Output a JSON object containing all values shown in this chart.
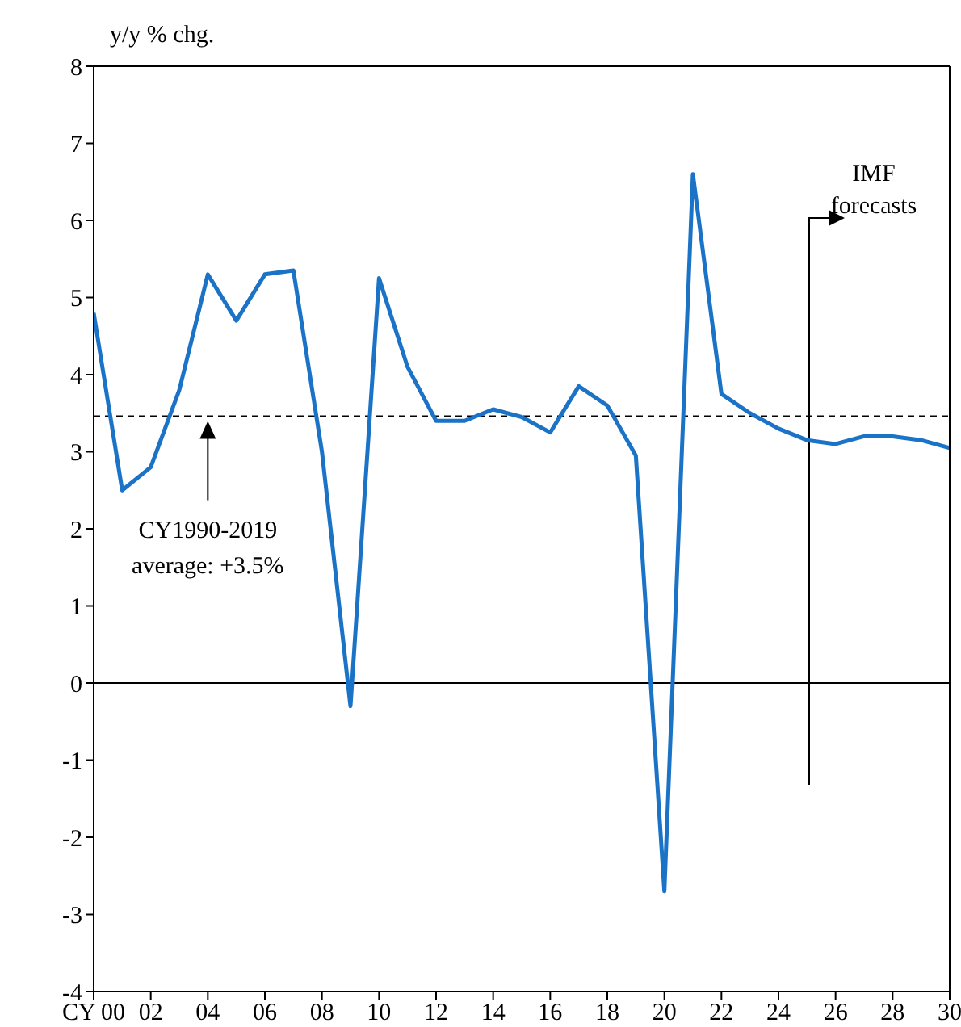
{
  "chart_data": {
    "type": "line",
    "ylabel": "y/y % chg.",
    "x": [
      2000,
      2001,
      2002,
      2003,
      2004,
      2005,
      2006,
      2007,
      2008,
      2009,
      2010,
      2011,
      2012,
      2013,
      2014,
      2015,
      2016,
      2017,
      2018,
      2019,
      2020,
      2021,
      2022,
      2023,
      2024,
      2025,
      2026,
      2027,
      2028,
      2029,
      2030
    ],
    "series": [
      {
        "color": "#1a73c6",
        "values": [
          4.8,
          2.5,
          2.8,
          3.8,
          5.3,
          4.7,
          5.3,
          5.35,
          3.0,
          -0.3,
          5.25,
          4.1,
          3.4,
          3.4,
          3.55,
          3.45,
          3.25,
          3.85,
          3.6,
          2.95,
          -2.7,
          6.6,
          3.75,
          3.5,
          3.3,
          3.15,
          3.1,
          3.2,
          3.2,
          3.15,
          3.05
        ]
      }
    ],
    "xlim": [
      2000,
      2030
    ],
    "xticks": [
      {
        "value": 2000,
        "label": "CY 00"
      },
      {
        "value": 2002,
        "label": "02"
      },
      {
        "value": 2004,
        "label": "04"
      },
      {
        "value": 2006,
        "label": "06"
      },
      {
        "value": 2008,
        "label": "08"
      },
      {
        "value": 2010,
        "label": "10"
      },
      {
        "value": 2012,
        "label": "12"
      },
      {
        "value": 2014,
        "label": "14"
      },
      {
        "value": 2016,
        "label": "16"
      },
      {
        "value": 2018,
        "label": "18"
      },
      {
        "value": 2020,
        "label": "20"
      },
      {
        "value": 2022,
        "label": "22"
      },
      {
        "value": 2024,
        "label": "24"
      },
      {
        "value": 2026,
        "label": "26"
      },
      {
        "value": 2028,
        "label": "28"
      },
      {
        "value": 2030,
        "label": "30"
      }
    ],
    "ylim": [
      -4,
      8
    ],
    "yticks": [
      -4,
      -3,
      -2,
      -1,
      0,
      1,
      2,
      3,
      4,
      5,
      6,
      7,
      8
    ],
    "ref_lines": [
      {
        "axis": "y",
        "value": 3.46,
        "color": "#000000",
        "line_style": "dashed"
      },
      {
        "axis": "y",
        "value": 0,
        "color": "#000000",
        "line_style": "solid"
      }
    ],
    "annotations": [
      {
        "text": "CY1990-2019\naverage: +3.5%",
        "x": 2004,
        "y": 3.46
      },
      "IMF\nforecasts"
    ],
    "grid": false,
    "legend": false,
    "marker": "none",
    "line_style": "solid"
  }
}
